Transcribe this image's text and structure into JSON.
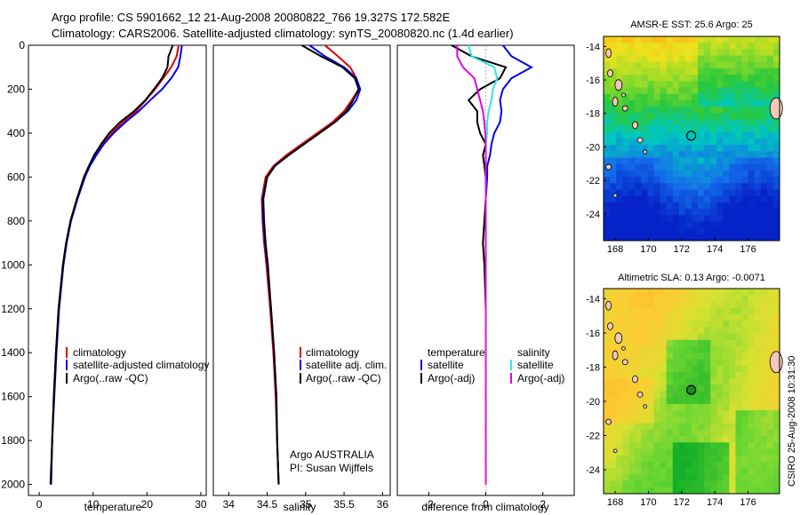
{
  "header": {
    "line1": "Argo profile: CS 5901662_12 21-Aug-2008 20080822_766 19.327S 172.582E",
    "line2": "Climatology: CARS2006. Satellite-adjusted climatology: synTS_20080820.nc (1.4d earlier)"
  },
  "colors": {
    "climatology": "#e00000",
    "satellite": "#0000ee",
    "argo": "#000000",
    "satellite_salinity": "#33e5e5",
    "argo_adj_salinity": "#e000e0"
  },
  "chart_data": [
    {
      "type": "line",
      "id": "temperature",
      "xlabel": "temperature",
      "xlim": [
        -2,
        31
      ],
      "ylim": [
        0,
        2050
      ],
      "y_reversed": true,
      "xticks": [
        "0",
        "10",
        "20",
        "30"
      ],
      "yticks": [
        "0",
        "200",
        "400",
        "600",
        "800",
        "1000",
        "1200",
        "1400",
        "1600",
        "1800",
        "2000"
      ],
      "depth": [
        0,
        50,
        100,
        150,
        200,
        250,
        300,
        350,
        400,
        450,
        500,
        550,
        600,
        700,
        800,
        900,
        1000,
        1200,
        1400,
        1600,
        1800,
        2000
      ],
      "series": [
        {
          "name": "climatology",
          "color_key": "climatology",
          "values": [
            25.9,
            25.5,
            24.5,
            23.0,
            21.5,
            19.8,
            18.0,
            15.5,
            13.5,
            11.8,
            10.4,
            9.3,
            8.4,
            7.0,
            5.8,
            5.0,
            4.4,
            3.6,
            3.1,
            2.7,
            2.4,
            2.2
          ]
        },
        {
          "name": "satellite-adjusted climatology",
          "color_key": "satellite",
          "values": [
            26.5,
            26.2,
            25.8,
            24.5,
            22.8,
            20.6,
            18.5,
            16.0,
            13.8,
            12.0,
            10.6,
            9.4,
            8.5,
            7.1,
            5.9,
            5.1,
            4.5,
            3.7,
            3.2,
            2.8,
            2.4,
            2.2
          ]
        },
        {
          "name": "Argo(..raw -QC)",
          "color_key": "argo",
          "values": [
            24.8,
            24.0,
            23.8,
            22.8,
            21.3,
            19.7,
            17.6,
            15.0,
            13.0,
            11.5,
            10.2,
            9.2,
            8.3,
            7.0,
            5.8,
            5.0,
            4.4,
            3.6,
            3.1,
            2.7,
            2.4,
            2.1
          ]
        }
      ],
      "legend": [
        "climatology",
        "satellite-adjusted climatology",
        "Argo(..raw -QC)"
      ]
    },
    {
      "type": "line",
      "id": "salinity",
      "xlabel": "salinity",
      "xlim": [
        33.8,
        36.1
      ],
      "ylim": [
        0,
        2050
      ],
      "y_reversed": true,
      "xticks": [
        "34",
        "34.5",
        "35",
        "35.5",
        "36"
      ],
      "depth": [
        0,
        50,
        100,
        150,
        200,
        250,
        300,
        350,
        400,
        450,
        500,
        550,
        600,
        700,
        800,
        900,
        1000,
        1200,
        1400,
        1600,
        1800,
        2000
      ],
      "series": [
        {
          "name": "climatology",
          "color_key": "climatology",
          "values": [
            35.25,
            35.42,
            35.58,
            35.66,
            35.69,
            35.6,
            35.5,
            35.35,
            35.15,
            34.95,
            34.75,
            34.58,
            34.48,
            34.43,
            34.44,
            34.46,
            34.49,
            34.54,
            34.58,
            34.61,
            34.63,
            34.65
          ]
        },
        {
          "name": "satellite adj. clim.",
          "color_key": "satellite",
          "values": [
            35.05,
            35.25,
            35.5,
            35.66,
            35.71,
            35.66,
            35.55,
            35.38,
            35.18,
            34.98,
            34.78,
            34.6,
            34.5,
            34.44,
            34.45,
            34.47,
            34.5,
            34.55,
            34.59,
            34.62,
            34.63,
            34.65
          ]
        },
        {
          "name": "Argo(..raw -QC)",
          "color_key": "argo",
          "values": [
            34.95,
            35.2,
            35.48,
            35.64,
            35.69,
            35.62,
            35.53,
            35.38,
            35.18,
            34.98,
            34.78,
            34.6,
            34.5,
            34.45,
            34.46,
            34.48,
            34.51,
            34.55,
            34.59,
            34.62,
            34.63,
            34.65
          ]
        }
      ],
      "legend": [
        "climatology",
        "satellite adj. clim.",
        "Argo(..raw -QC)"
      ],
      "annotation": {
        "line1": "Argo AUSTRALIA",
        "line2": "PI: Susan Wijffels"
      }
    },
    {
      "type": "line",
      "id": "difference",
      "xlabel": "difference from climatology",
      "xlim": [
        -3.1,
        3.1
      ],
      "ylim": [
        0,
        2050
      ],
      "y_reversed": true,
      "xticks": [
        "-2",
        "0",
        "2"
      ],
      "depth": [
        0,
        50,
        100,
        150,
        200,
        250,
        300,
        350,
        400,
        450,
        500,
        550,
        600,
        700,
        800,
        900,
        1000,
        1200,
        1400,
        1600,
        1800,
        2000
      ],
      "series": [
        {
          "name": "temperature satellite",
          "color_key": "satellite",
          "values": [
            0.6,
            0.9,
            1.6,
            0.9,
            0.6,
            0.5,
            0.55,
            0.5,
            0.3,
            0.2,
            0.15,
            0.05,
            0.05,
            0.0,
            0.0,
            0.0,
            0.0,
            0.0,
            0.0,
            0.0,
            0.0,
            0.0
          ]
        },
        {
          "name": "temperature Argo(-adj)",
          "color_key": "argo",
          "values": [
            -1.2,
            -0.5,
            0.7,
            0.5,
            -0.2,
            -0.6,
            -0.3,
            -0.3,
            -0.2,
            0.0,
            -0.1,
            -0.05,
            0.0,
            0.0,
            -0.05,
            -0.1,
            -0.05,
            0.0,
            0.0,
            0.0,
            0.0,
            0.0
          ]
        },
        {
          "name": "salinity satellite",
          "color_key": "satellite_salinity",
          "values": [
            -0.6,
            -0.5,
            0.3,
            0.4,
            0.25,
            0.2,
            0.1,
            0.05,
            0.05,
            0.0,
            0.0,
            0.0,
            0.0,
            0.0,
            0.0,
            0.0,
            0.0,
            0.0,
            0.0,
            0.0,
            0.0,
            0.0
          ]
        },
        {
          "name": "salinity Argo(-adj)",
          "color_key": "argo_adj_salinity",
          "values": [
            -1.0,
            -1.0,
            -0.8,
            -0.4,
            -0.3,
            -0.2,
            -0.1,
            -0.05,
            -0.02,
            0.0,
            0.0,
            0.0,
            0.0,
            0.0,
            0.0,
            0.0,
            0.0,
            0.0,
            0.0,
            0.0,
            0.0,
            0.0
          ]
        }
      ],
      "legend": {
        "temperature_heading": "temperature",
        "salinity_heading": "salinity",
        "temperature": [
          "satellite",
          "Argo(-adj)"
        ],
        "salinity": [
          "satellite",
          "Argo(-adj)"
        ]
      }
    },
    {
      "type": "heatmap",
      "id": "sst_map",
      "title": "AMSR-E SST: 25.6 Argo: 25",
      "xlim": [
        167.3,
        177.9
      ],
      "ylim": [
        -25.6,
        -13.4
      ],
      "xticks": [
        "168",
        "170",
        "172",
        "174",
        "176"
      ],
      "yticks": [
        "-14",
        "-16",
        "-18",
        "-20",
        "-22",
        "-24"
      ],
      "float_lon": 172.58,
      "float_lat": -19.33,
      "marker": "open circle"
    },
    {
      "type": "heatmap",
      "id": "sla_map",
      "title": "Altimetric SLA: 0.13 Argo: -0.0071",
      "xlim": [
        167.3,
        177.9
      ],
      "ylim": [
        -25.4,
        -13.4
      ],
      "xticks": [
        "168",
        "170",
        "172",
        "174",
        "176"
      ],
      "yticks": [
        "-14",
        "-16",
        "-18",
        "-20",
        "-22",
        "-24"
      ],
      "float_lon": 172.58,
      "float_lat": -19.33,
      "marker": "filled circle"
    }
  ],
  "side_label": "CSIRO 25-Aug-2008 10:31:30"
}
